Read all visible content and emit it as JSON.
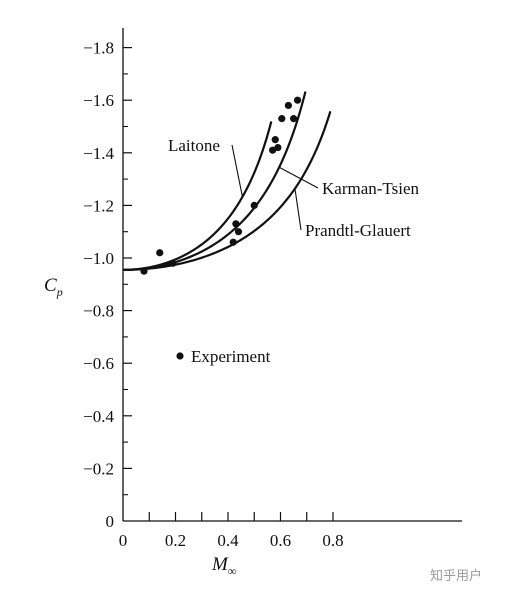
{
  "chart_data": {
    "type": "line",
    "xlabel": "M",
    "xlabel_sub": "∞",
    "ylabel": "C",
    "ylabel_sub": "p",
    "xlim": [
      0,
      1.3
    ],
    "ylim": [
      0,
      -1.8
    ],
    "y_inverted": true,
    "grid": false,
    "xticks": [
      0,
      0.1,
      0.2,
      0.3,
      0.4,
      0.5,
      0.6,
      0.7,
      0.8
    ],
    "xtick_labels": [
      {
        "value": 0,
        "label": "0"
      },
      {
        "value": 0.2,
        "label": "0.2"
      },
      {
        "value": 0.4,
        "label": "0.4"
      },
      {
        "value": 0.6,
        "label": "0.6"
      },
      {
        "value": 0.8,
        "label": "0.8"
      }
    ],
    "yticks": [
      {
        "value": 0,
        "label": "0"
      },
      {
        "value": -0.2,
        "label": "−0.2"
      },
      {
        "value": -0.4,
        "label": "−0.4"
      },
      {
        "value": -0.6,
        "label": "−0.6"
      },
      {
        "value": -0.8,
        "label": "−0.8"
      },
      {
        "value": -1.0,
        "label": "−1.0"
      },
      {
        "value": -1.2,
        "label": "−1.2"
      },
      {
        "value": -1.4,
        "label": "−1.4"
      },
      {
        "value": -1.6,
        "label": "−1.6"
      },
      {
        "value": -1.8,
        "label": "−1.8"
      }
    ],
    "incompressible_cp": -0.955,
    "series": [
      {
        "name": "Laitone",
        "method": "laitone",
        "x_max": 0.565,
        "label_anchor_x": 0.455
      },
      {
        "name": "Karman-Tsien",
        "method": "karman-tsien",
        "x_max": 0.695,
        "label_anchor_x": 0.595
      },
      {
        "name": "Prandtl-Glauert",
        "method": "prandtl-glauert",
        "x_max": 0.79,
        "label_anchor_x": 0.655
      }
    ],
    "experiment": {
      "name": "Experiment",
      "points": [
        {
          "x": 0.08,
          "y": -0.95
        },
        {
          "x": 0.14,
          "y": -1.02
        },
        {
          "x": 0.19,
          "y": -0.98
        },
        {
          "x": 0.42,
          "y": -1.06
        },
        {
          "x": 0.43,
          "y": -1.13
        },
        {
          "x": 0.44,
          "y": -1.1
        },
        {
          "x": 0.5,
          "y": -1.2
        },
        {
          "x": 0.57,
          "y": -1.41
        },
        {
          "x": 0.58,
          "y": -1.45
        },
        {
          "x": 0.59,
          "y": -1.42
        },
        {
          "x": 0.605,
          "y": -1.53
        },
        {
          "x": 0.63,
          "y": -1.58
        },
        {
          "x": 0.65,
          "y": -1.53
        },
        {
          "x": 0.665,
          "y": -1.6
        }
      ]
    }
  },
  "watermark": "知乎用户"
}
